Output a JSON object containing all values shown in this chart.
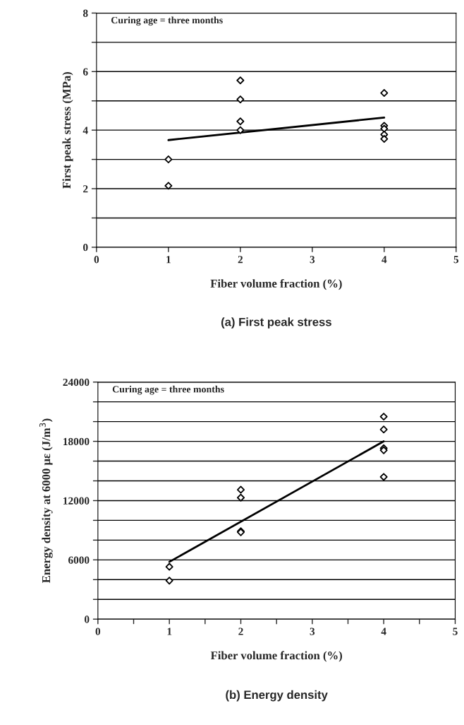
{
  "chart_data": [
    {
      "type": "scatter",
      "xlabel": "Fiber volume fraction (%)",
      "ylabel": "First peak stress (MPa)",
      "annotations": [
        "Curing age = three months",
        "(a) First peak stress"
      ],
      "xlim": [
        0,
        5
      ],
      "xticks": [
        0,
        1,
        2,
        3,
        4,
        5
      ],
      "ylim": [
        0,
        8
      ],
      "yticks": [
        0,
        {
          "value": 1,
          "label": null
        },
        2,
        {
          "value": 3,
          "label": null
        },
        4,
        {
          "value": 5,
          "label": null
        },
        6,
        {
          "value": 7,
          "label": null
        },
        8
      ],
      "grid": "y",
      "legend": false,
      "series": [
        {
          "marker": "diamond",
          "color": "#000000",
          "x": [
            1,
            1,
            2,
            2,
            2,
            2,
            4,
            4,
            4,
            4,
            4
          ],
          "values": [
            3.0,
            2.1,
            5.7,
            5.05,
            4.3,
            4.0,
            5.27,
            4.15,
            4.05,
            3.85,
            3.7
          ]
        },
        {
          "type": "line",
          "marker": "none",
          "color": "#000000",
          "x": [
            1,
            4
          ],
          "values": [
            3.66,
            4.43
          ]
        }
      ]
    },
    {
      "type": "scatter",
      "xlabel": "Fiber volume fraction (%)",
      "ylabel": "Energy density at 6000 με (J/m$^{3}$)",
      "annotations": [
        "Curing age = three months",
        "(b) Energy density"
      ],
      "xlim": [
        0,
        5
      ],
      "xticks": [
        0,
        {
          "value": 0.5,
          "label": null
        },
        1,
        {
          "value": 1.5,
          "label": null
        },
        2,
        {
          "value": 2.5,
          "label": null
        },
        3,
        {
          "value": 3.5,
          "label": null
        },
        4,
        {
          "value": 4.5,
          "label": null
        },
        5
      ],
      "ylim": [
        0,
        24000
      ],
      "yticks": [
        0,
        {
          "value": 2000,
          "label": null
        },
        {
          "value": 4000,
          "label": null
        },
        6000,
        {
          "value": 8000,
          "label": null
        },
        {
          "value": 10000,
          "label": null
        },
        12000,
        {
          "value": 14000,
          "label": null
        },
        {
          "value": 16000,
          "label": null
        },
        18000,
        {
          "value": 20000,
          "label": null
        },
        {
          "value": 22000,
          "label": null
        },
        24000
      ],
      "grid": "y",
      "legend": false,
      "series": [
        {
          "marker": "diamond",
          "color": "#000000",
          "x": [
            1,
            1,
            2,
            2,
            2,
            2,
            4,
            4,
            4,
            4,
            4
          ],
          "values": [
            5300,
            3900,
            13100,
            12300,
            8900,
            8800,
            20500,
            19200,
            17300,
            17100,
            14400
          ]
        },
        {
          "type": "line",
          "marker": "none",
          "color": "#000000",
          "x": [
            1,
            4
          ],
          "values": [
            5800,
            18000
          ]
        }
      ]
    }
  ]
}
